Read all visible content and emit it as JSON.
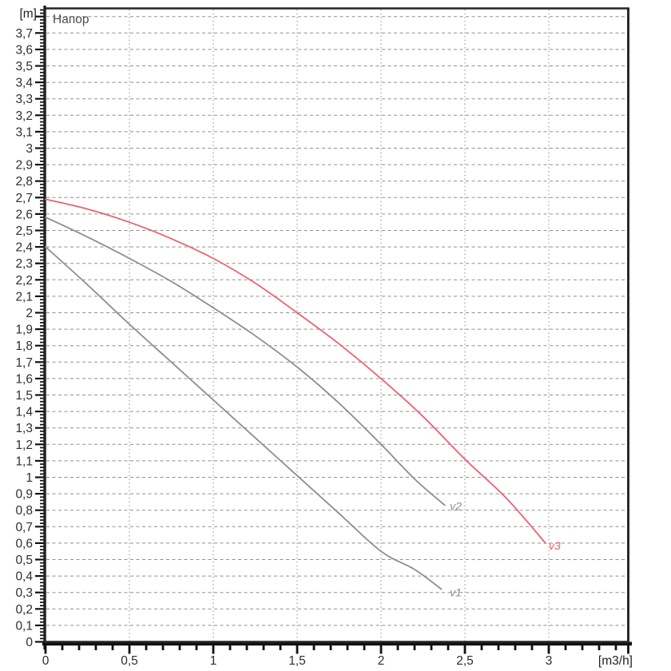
{
  "chart": {
    "title": "Напор",
    "y_unit": "[m]",
    "x_unit": "[m3/h]"
  },
  "chart_data": {
    "type": "line",
    "title": "Напор",
    "xlabel": "[m3/h]",
    "ylabel": "[m]",
    "xlim": [
      0,
      3.48
    ],
    "ylim": [
      0,
      3.85
    ],
    "grid": {
      "horizontal_step": 0.1,
      "horizontal_max": 3.8,
      "vertical_step": 0.5,
      "vertical_max": 3.0,
      "style": "dashed"
    },
    "y_tick_step": 0.1,
    "y_tick_labels": [
      "0",
      "0,1",
      "0,2",
      "0,3",
      "0,4",
      "0,5",
      "0,6",
      "0,7",
      "0,8",
      "0,9",
      "1",
      "1,1",
      "1,2",
      "1,3",
      "1,4",
      "1,5",
      "1,6",
      "1,7",
      "1,8",
      "1,9",
      "2",
      "2,1",
      "2,2",
      "2,3",
      "2,4",
      "2,5",
      "2,6",
      "2,7",
      "2,8",
      "2,9",
      "3",
      "3,1",
      "3,2",
      "3,3",
      "3,4",
      "3,5",
      "3,6",
      "3,7"
    ],
    "y_minor_tick_step": 0.02,
    "x_minor_tick_step": 0.1,
    "x_ticks": [
      {
        "v": 0,
        "label": "0"
      },
      {
        "v": 0.5,
        "label": "0,5"
      },
      {
        "v": 1,
        "label": "1"
      },
      {
        "v": 1.5,
        "label": "1,5"
      },
      {
        "v": 2,
        "label": "2"
      },
      {
        "v": 2.5,
        "label": "2,5"
      },
      {
        "v": 3,
        "label": "3"
      }
    ],
    "series": [
      {
        "name": "v1",
        "label": "v1",
        "color": "#8d8d8d",
        "label_at": [
          2.41,
          0.3
        ],
        "points": [
          [
            0,
            2.4
          ],
          [
            0.25,
            2.17
          ],
          [
            0.5,
            1.93
          ],
          [
            0.75,
            1.7
          ],
          [
            1.0,
            1.47
          ],
          [
            1.25,
            1.24
          ],
          [
            1.5,
            1.01
          ],
          [
            1.75,
            0.78
          ],
          [
            2.0,
            0.55
          ],
          [
            2.2,
            0.44
          ],
          [
            2.36,
            0.32
          ]
        ]
      },
      {
        "name": "v2",
        "label": "v2",
        "color": "#8d8d8d",
        "label_at": [
          2.41,
          0.825
        ],
        "points": [
          [
            0,
            2.58
          ],
          [
            0.25,
            2.46
          ],
          [
            0.5,
            2.33
          ],
          [
            0.75,
            2.19
          ],
          [
            1.0,
            2.03
          ],
          [
            1.25,
            1.86
          ],
          [
            1.5,
            1.67
          ],
          [
            1.75,
            1.45
          ],
          [
            2.0,
            1.2
          ],
          [
            2.2,
            0.99
          ],
          [
            2.38,
            0.83
          ]
        ]
      },
      {
        "name": "v3",
        "label": "v3",
        "color": "#ea6370",
        "label_at": [
          3.0,
          0.585
        ],
        "points": [
          [
            0,
            2.69
          ],
          [
            0.25,
            2.63
          ],
          [
            0.5,
            2.55
          ],
          [
            0.75,
            2.45
          ],
          [
            1.0,
            2.33
          ],
          [
            1.25,
            2.18
          ],
          [
            1.5,
            2.0
          ],
          [
            1.75,
            1.81
          ],
          [
            2.0,
            1.6
          ],
          [
            2.25,
            1.37
          ],
          [
            2.5,
            1.11
          ],
          [
            2.75,
            0.87
          ],
          [
            2.98,
            0.6
          ]
        ]
      }
    ],
    "legend_position": "none"
  },
  "colors": {
    "background": "#ffffff",
    "plot_border": "#262626",
    "grid_horizontal": "#8f8f8f",
    "grid_vertical": "#979797",
    "axis_ruler": "#111111",
    "tick_label": "#2e2e2e",
    "curve_gray": "#8d8d8d",
    "curve_red": "#ea6370"
  }
}
